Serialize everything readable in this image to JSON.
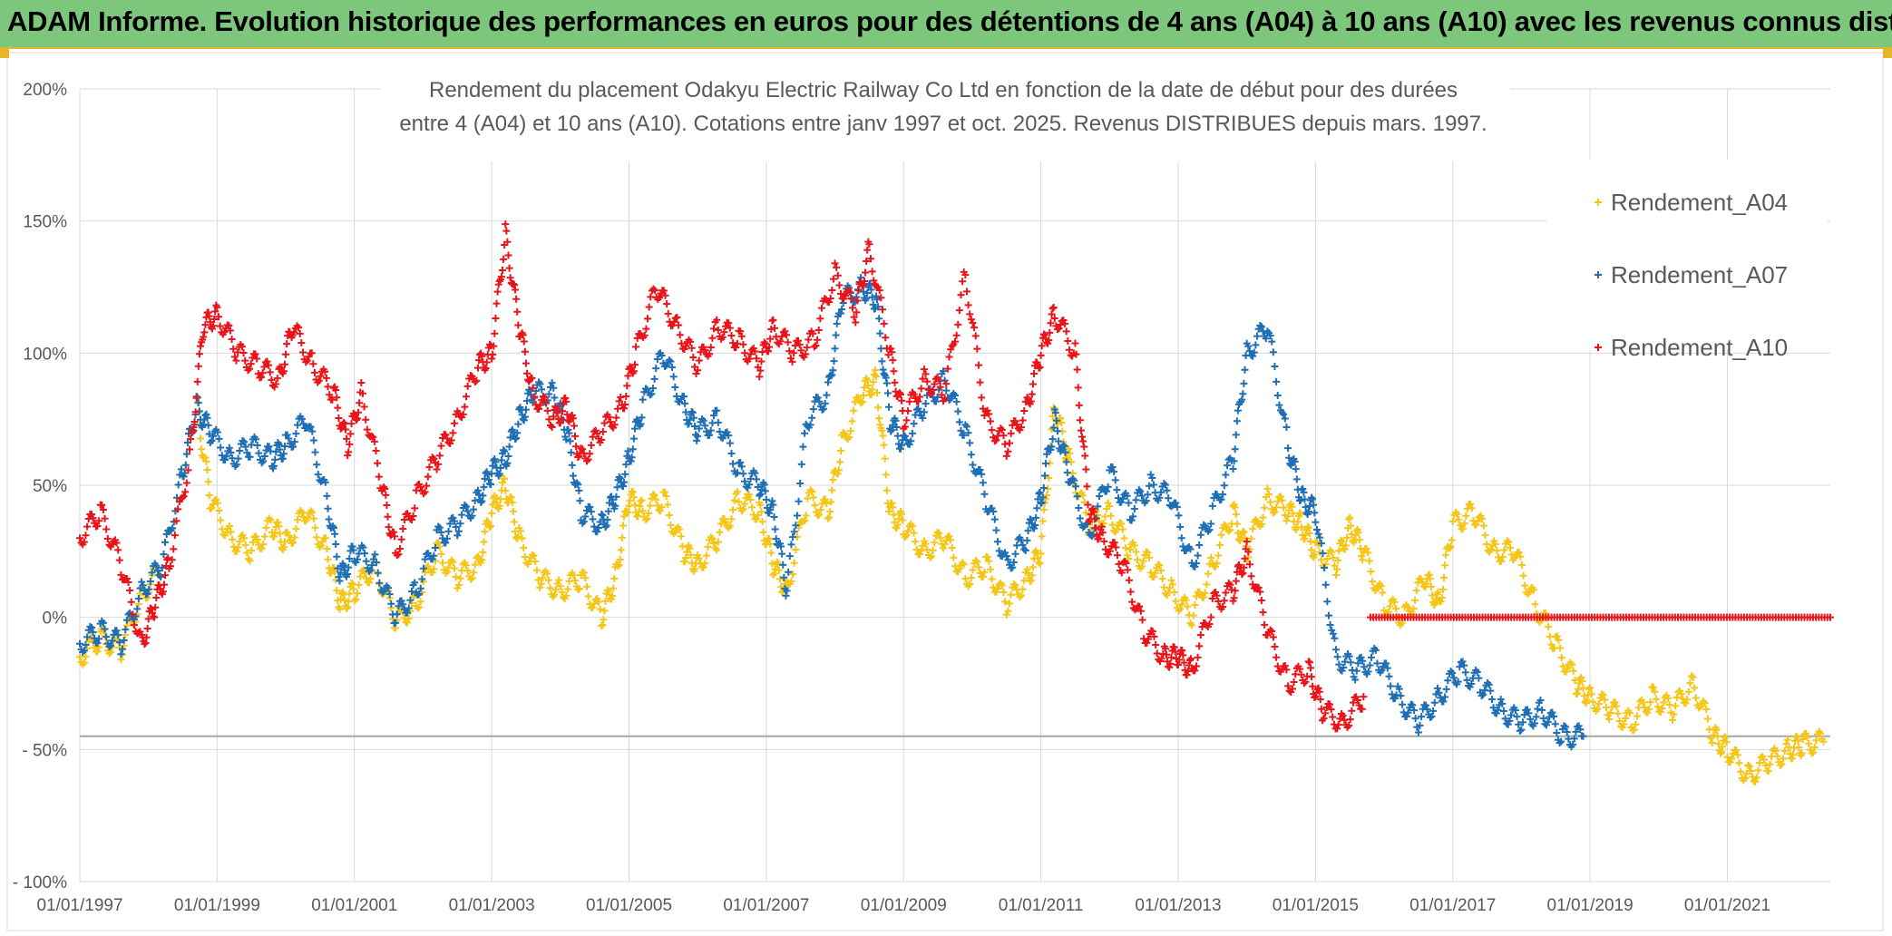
{
  "banner": {
    "title": "ADAM Informe. Evolution historique des performances en euros pour des détentions de 4 ans (A04) à 10 ans (A10) avec les revenus connus distribués"
  },
  "chart_data": {
    "type": "scatter",
    "title_line1": "Rendement du placement Odakyu Electric Railway Co Ltd en fonction de la date de début pour des durées",
    "title_line2": "entre 4 (A04) et 10 ans (A10). Cotations entre janv 1997 et oct. 2025. Revenus DISTRIBUES depuis mars. 1997.",
    "xlabel": "",
    "ylabel": "",
    "xlim": [
      1997.0,
      2022.5
    ],
    "ylim": [
      -100,
      200
    ],
    "y_ticks": [
      200,
      150,
      100,
      50,
      0,
      -50,
      -100
    ],
    "y_tick_labels": [
      "200%",
      "150%",
      "100%",
      "50%",
      "0%",
      "- 50%",
      "- 100%"
    ],
    "x_ticks": [
      1997,
      1999,
      2001,
      2003,
      2005,
      2007,
      2009,
      2011,
      2013,
      2015,
      2017,
      2019,
      2021
    ],
    "x_tick_labels": [
      "01/01/1997",
      "01/01/1999",
      "01/01/2001",
      "01/01/2003",
      "01/01/2005",
      "01/01/2007",
      "01/01/2009",
      "01/01/2011",
      "01/01/2013",
      "01/01/2015",
      "01/01/2017",
      "01/01/2019",
      "01/01/2021"
    ],
    "reference_line_y": -45,
    "marker": "+",
    "legend": {
      "position": "top-right",
      "entries": [
        "Rendement_A04",
        "Rendement_A07",
        "Rendement_A10"
      ]
    },
    "series": [
      {
        "name": "Rendement_A04",
        "color": "#f5c518",
        "points": [
          [
            1997.0,
            -15
          ],
          [
            1997.3,
            -8
          ],
          [
            1997.6,
            -12
          ],
          [
            1997.9,
            8
          ],
          [
            1998.2,
            20
          ],
          [
            1998.5,
            55
          ],
          [
            1998.7,
            80
          ],
          [
            1998.9,
            45
          ],
          [
            1999.2,
            30
          ],
          [
            1999.5,
            25
          ],
          [
            1999.8,
            35
          ],
          [
            2000.0,
            28
          ],
          [
            2000.3,
            40
          ],
          [
            2000.6,
            25
          ],
          [
            2000.8,
            5
          ],
          [
            2001.0,
            10
          ],
          [
            2001.3,
            20
          ],
          [
            2001.6,
            -2
          ],
          [
            2001.9,
            5
          ],
          [
            2002.2,
            25
          ],
          [
            2002.5,
            15
          ],
          [
            2002.8,
            20
          ],
          [
            2003.0,
            40
          ],
          [
            2003.2,
            50
          ],
          [
            2003.4,
            30
          ],
          [
            2003.7,
            15
          ],
          [
            2004.0,
            10
          ],
          [
            2004.3,
            15
          ],
          [
            2004.6,
            0
          ],
          [
            2004.8,
            15
          ],
          [
            2005.0,
            45
          ],
          [
            2005.2,
            40
          ],
          [
            2005.5,
            45
          ],
          [
            2005.8,
            25
          ],
          [
            2006.0,
            20
          ],
          [
            2006.3,
            30
          ],
          [
            2006.6,
            45
          ],
          [
            2006.9,
            40
          ],
          [
            2007.1,
            20
          ],
          [
            2007.3,
            10
          ],
          [
            2007.6,
            45
          ],
          [
            2007.9,
            40
          ],
          [
            2008.1,
            65
          ],
          [
            2008.4,
            85
          ],
          [
            2008.6,
            90
          ],
          [
            2008.8,
            40
          ],
          [
            2009.0,
            35
          ],
          [
            2009.3,
            25
          ],
          [
            2009.6,
            30
          ],
          [
            2009.9,
            15
          ],
          [
            2010.2,
            20
          ],
          [
            2010.5,
            5
          ],
          [
            2010.8,
            15
          ],
          [
            2011.0,
            25
          ],
          [
            2011.2,
            80
          ],
          [
            2011.4,
            60
          ],
          [
            2011.7,
            35
          ],
          [
            2012.0,
            40
          ],
          [
            2012.3,
            25
          ],
          [
            2012.6,
            20
          ],
          [
            2012.9,
            10
          ],
          [
            2013.2,
            0
          ],
          [
            2013.5,
            20
          ],
          [
            2013.8,
            40
          ],
          [
            2014.0,
            25
          ],
          [
            2014.3,
            45
          ],
          [
            2014.6,
            40
          ],
          [
            2014.8,
            35
          ],
          [
            2015.0,
            25
          ],
          [
            2015.3,
            20
          ],
          [
            2015.5,
            35
          ],
          [
            2015.7,
            25
          ],
          [
            2016.0,
            5
          ],
          [
            2016.3,
            0
          ],
          [
            2016.6,
            15
          ],
          [
            2016.8,
            5
          ],
          [
            2017.0,
            35
          ],
          [
            2017.3,
            40
          ],
          [
            2017.6,
            25
          ],
          [
            2017.9,
            25
          ],
          [
            2018.2,
            5
          ],
          [
            2018.5,
            -10
          ],
          [
            2018.8,
            -25
          ],
          [
            2019.0,
            -30
          ],
          [
            2019.3,
            -35
          ],
          [
            2019.6,
            -40
          ],
          [
            2019.9,
            -30
          ],
          [
            2020.2,
            -35
          ],
          [
            2020.5,
            -25
          ],
          [
            2020.8,
            -45
          ],
          [
            2021.0,
            -50
          ],
          [
            2021.3,
            -60
          ],
          [
            2021.6,
            -55
          ],
          [
            2021.9,
            -50
          ],
          [
            2022.1,
            -48
          ],
          [
            2022.4,
            -47
          ]
        ]
      },
      {
        "name": "Rendement_A07",
        "color": "#1f6fb5",
        "points": [
          [
            1997.0,
            -10
          ],
          [
            1997.3,
            -5
          ],
          [
            1997.6,
            -10
          ],
          [
            1997.9,
            10
          ],
          [
            1998.2,
            20
          ],
          [
            1998.5,
            55
          ],
          [
            1998.7,
            80
          ],
          [
            1998.9,
            70
          ],
          [
            1999.2,
            60
          ],
          [
            1999.5,
            65
          ],
          [
            1999.8,
            60
          ],
          [
            2000.0,
            65
          ],
          [
            2000.3,
            75
          ],
          [
            2000.6,
            45
          ],
          [
            2000.8,
            15
          ],
          [
            2001.0,
            25
          ],
          [
            2001.3,
            20
          ],
          [
            2001.6,
            0
          ],
          [
            2001.9,
            10
          ],
          [
            2002.2,
            30
          ],
          [
            2002.5,
            35
          ],
          [
            2002.8,
            45
          ],
          [
            2003.0,
            55
          ],
          [
            2003.2,
            60
          ],
          [
            2003.4,
            75
          ],
          [
            2003.6,
            85
          ],
          [
            2003.9,
            85
          ],
          [
            2004.1,
            70
          ],
          [
            2004.3,
            40
          ],
          [
            2004.6,
            35
          ],
          [
            2004.8,
            45
          ],
          [
            2005.0,
            60
          ],
          [
            2005.2,
            80
          ],
          [
            2005.5,
            100
          ],
          [
            2005.8,
            80
          ],
          [
            2006.0,
            70
          ],
          [
            2006.3,
            75
          ],
          [
            2006.6,
            55
          ],
          [
            2006.9,
            50
          ],
          [
            2007.1,
            40
          ],
          [
            2007.3,
            10
          ],
          [
            2007.6,
            75
          ],
          [
            2007.9,
            85
          ],
          [
            2008.1,
            120
          ],
          [
            2008.4,
            125
          ],
          [
            2008.6,
            120
          ],
          [
            2008.8,
            75
          ],
          [
            2009.0,
            65
          ],
          [
            2009.3,
            80
          ],
          [
            2009.6,
            90
          ],
          [
            2009.9,
            70
          ],
          [
            2010.2,
            45
          ],
          [
            2010.5,
            20
          ],
          [
            2010.8,
            30
          ],
          [
            2011.0,
            45
          ],
          [
            2011.2,
            75
          ],
          [
            2011.4,
            55
          ],
          [
            2011.7,
            30
          ],
          [
            2012.0,
            55
          ],
          [
            2012.3,
            40
          ],
          [
            2012.6,
            50
          ],
          [
            2012.9,
            45
          ],
          [
            2013.2,
            20
          ],
          [
            2013.5,
            40
          ],
          [
            2013.8,
            60
          ],
          [
            2014.0,
            100
          ],
          [
            2014.3,
            110
          ],
          [
            2014.6,
            65
          ],
          [
            2014.8,
            45
          ],
          [
            2015.0,
            40
          ],
          [
            2015.3,
            -15
          ],
          [
            2015.6,
            -20
          ],
          [
            2015.9,
            -15
          ],
          [
            2016.2,
            -30
          ],
          [
            2016.5,
            -40
          ],
          [
            2016.8,
            -30
          ],
          [
            2017.1,
            -20
          ],
          [
            2017.4,
            -25
          ],
          [
            2017.7,
            -35
          ],
          [
            2018.0,
            -40
          ],
          [
            2018.3,
            -35
          ],
          [
            2018.6,
            -45
          ],
          [
            2018.9,
            -45
          ]
        ]
      },
      {
        "name": "Rendement_A10",
        "color": "#e8151b",
        "points": [
          [
            1997.0,
            30
          ],
          [
            1997.3,
            40
          ],
          [
            1997.6,
            20
          ],
          [
            1997.9,
            -10
          ],
          [
            1998.1,
            5
          ],
          [
            1998.3,
            20
          ],
          [
            1998.6,
            60
          ],
          [
            1998.8,
            110
          ],
          [
            1999.0,
            115
          ],
          [
            1999.3,
            100
          ],
          [
            1999.6,
            95
          ],
          [
            1999.9,
            90
          ],
          [
            2000.1,
            110
          ],
          [
            2000.4,
            95
          ],
          [
            2000.7,
            85
          ],
          [
            2000.9,
            65
          ],
          [
            2001.1,
            85
          ],
          [
            2001.4,
            50
          ],
          [
            2001.6,
            25
          ],
          [
            2001.9,
            45
          ],
          [
            2002.2,
            60
          ],
          [
            2002.5,
            75
          ],
          [
            2002.8,
            95
          ],
          [
            2003.0,
            100
          ],
          [
            2003.2,
            145
          ],
          [
            2003.4,
            110
          ],
          [
            2003.6,
            85
          ],
          [
            2003.9,
            75
          ],
          [
            2004.1,
            80
          ],
          [
            2004.3,
            60
          ],
          [
            2004.6,
            70
          ],
          [
            2004.9,
            80
          ],
          [
            2005.1,
            100
          ],
          [
            2005.4,
            125
          ],
          [
            2005.7,
            110
          ],
          [
            2006.0,
            95
          ],
          [
            2006.3,
            110
          ],
          [
            2006.6,
            105
          ],
          [
            2006.9,
            95
          ],
          [
            2007.1,
            110
          ],
          [
            2007.4,
            100
          ],
          [
            2007.7,
            105
          ],
          [
            2008.0,
            130
          ],
          [
            2008.3,
            115
          ],
          [
            2008.5,
            140
          ],
          [
            2008.8,
            100
          ],
          [
            2009.0,
            75
          ],
          [
            2009.3,
            90
          ],
          [
            2009.6,
            85
          ],
          [
            2009.9,
            130
          ],
          [
            2010.2,
            75
          ],
          [
            2010.5,
            65
          ],
          [
            2010.8,
            80
          ],
          [
            2011.0,
            100
          ],
          [
            2011.2,
            115
          ],
          [
            2011.5,
            100
          ],
          [
            2011.7,
            40
          ],
          [
            2011.9,
            30
          ],
          [
            2012.2,
            20
          ],
          [
            2012.5,
            -5
          ],
          [
            2012.8,
            -15
          ],
          [
            2013.0,
            -15
          ],
          [
            2013.2,
            -20
          ],
          [
            2013.5,
            5
          ],
          [
            2013.8,
            10
          ],
          [
            2014.0,
            25
          ],
          [
            2014.3,
            -5
          ],
          [
            2014.6,
            -25
          ],
          [
            2014.9,
            -20
          ],
          [
            2015.1,
            -35
          ],
          [
            2015.4,
            -40
          ],
          [
            2015.7,
            -30
          ]
        ]
      },
      {
        "name": "Rendement_A10_zero_segment",
        "color": "#e8151b",
        "x_range": [
          2015.8,
          2022.5
        ],
        "y": 0
      }
    ]
  }
}
